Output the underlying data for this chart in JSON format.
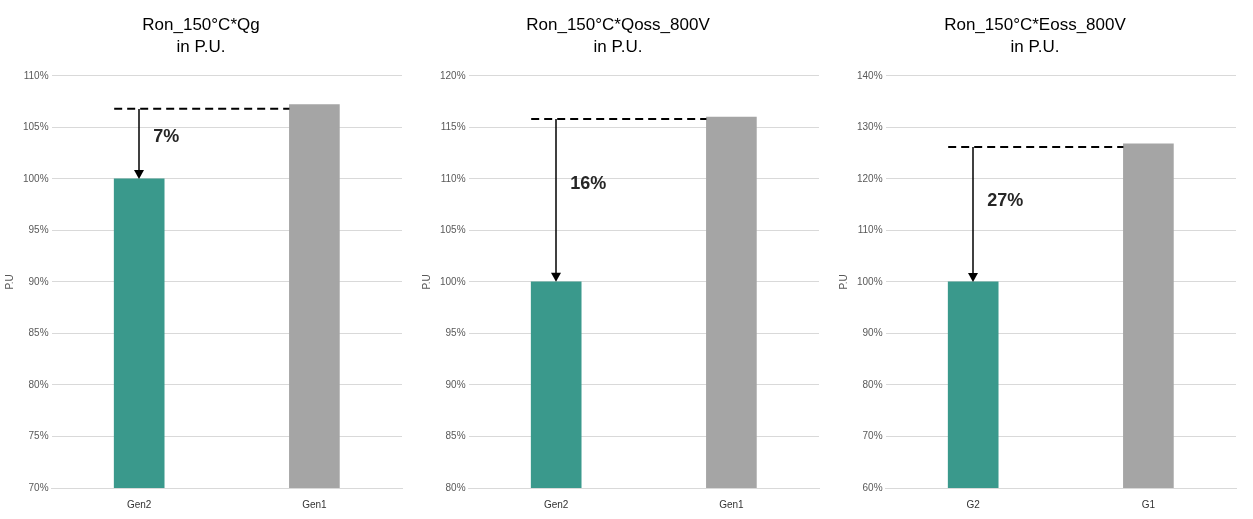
{
  "chart_data": [
    {
      "type": "bar",
      "title": "Ron_150°C*Qg",
      "subtitle": "in P.U.",
      "ylabel": "P.U",
      "categories": [
        "Gen2",
        "Gen1"
      ],
      "values": [
        100,
        107.2
      ],
      "colors": [
        "#3a998c",
        "#a5a5a5"
      ],
      "ylim": [
        70,
        110
      ],
      "yticks": [
        {
          "value": 70,
          "label": "70%"
        },
        {
          "value": 75,
          "label": "75%"
        },
        {
          "value": 80,
          "label": "80%"
        },
        {
          "value": 85,
          "label": "85%"
        },
        {
          "value": 90,
          "label": "90%"
        },
        {
          "value": 95,
          "label": "95%"
        },
        {
          "value": 100,
          "label": "100%"
        },
        {
          "value": 105,
          "label": "105%"
        },
        {
          "value": 110,
          "label": "110%"
        }
      ],
      "grid": "y",
      "legend": false,
      "ref_lines": [
        {
          "axis": "y",
          "value": 106.8,
          "label": null,
          "color": "#000000",
          "line_style": "dashed"
        }
      ],
      "annotations": [
        "7%"
      ]
    },
    {
      "type": "bar",
      "title": "Ron_150°C*Qoss_800V",
      "subtitle": "in P.U.",
      "ylabel": "P.U",
      "categories": [
        "Gen2",
        "Gen1"
      ],
      "values": [
        100,
        116
      ],
      "colors": [
        "#3a998c",
        "#a5a5a5"
      ],
      "ylim": [
        80,
        120
      ],
      "yticks": [
        {
          "value": 80,
          "label": "80%"
        },
        {
          "value": 85,
          "label": "85%"
        },
        {
          "value": 90,
          "label": "90%"
        },
        {
          "value": 95,
          "label": "95%"
        },
        {
          "value": 100,
          "label": "100%"
        },
        {
          "value": 105,
          "label": "105%"
        },
        {
          "value": 110,
          "label": "110%"
        },
        {
          "value": 115,
          "label": "115%"
        },
        {
          "value": 120,
          "label": "120%"
        }
      ],
      "grid": "y",
      "legend": false,
      "ref_lines": [
        {
          "axis": "y",
          "value": 115.8,
          "label": null,
          "color": "#000000",
          "line_style": "dashed"
        }
      ],
      "annotations": [
        "16%"
      ]
    },
    {
      "type": "bar",
      "title": "Ron_150°C*Eoss_800V",
      "subtitle": "in P.U.",
      "ylabel": "P.U",
      "categories": [
        "G2",
        "G1"
      ],
      "values": [
        100,
        126.8
      ],
      "colors": [
        "#3a998c",
        "#a5a5a5"
      ],
      "ylim": [
        60,
        140
      ],
      "yticks": [
        {
          "value": 60,
          "label": "60%"
        },
        {
          "value": 70,
          "label": "70%"
        },
        {
          "value": 80,
          "label": "80%"
        },
        {
          "value": 90,
          "label": "90%"
        },
        {
          "value": 100,
          "label": "100%"
        },
        {
          "value": 110,
          "label": "110%"
        },
        {
          "value": 120,
          "label": "120%"
        },
        {
          "value": 130,
          "label": "130%"
        },
        {
          "value": 140,
          "label": "140%"
        }
      ],
      "grid": "y",
      "legend": false,
      "ref_lines": [
        {
          "axis": "y",
          "value": 126.2,
          "label": null,
          "color": "#000000",
          "line_style": "dashed"
        }
      ],
      "annotations": [
        "27%"
      ]
    }
  ]
}
